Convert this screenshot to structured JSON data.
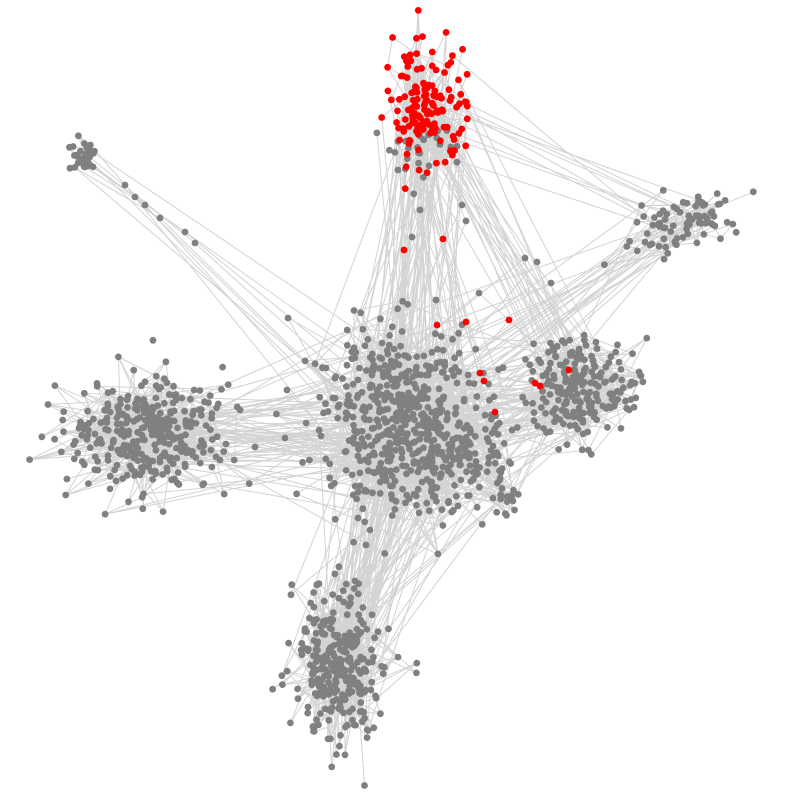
{
  "graph": {
    "kind": "network",
    "node_colors": {
      "default": "#808080",
      "highlighted": "#ff0000"
    },
    "edge_color": "#d3d3d3",
    "background": "#ffffff",
    "communities": [
      {
        "id": "center",
        "color": "default"
      },
      {
        "id": "top",
        "color": "highlighted"
      },
      {
        "id": "left",
        "color": "default"
      },
      {
        "id": "bottom",
        "color": "default"
      },
      {
        "id": "right",
        "color": "default"
      },
      {
        "id": "upper-right",
        "color": "default"
      },
      {
        "id": "upper-left",
        "color": "default"
      }
    ]
  }
}
